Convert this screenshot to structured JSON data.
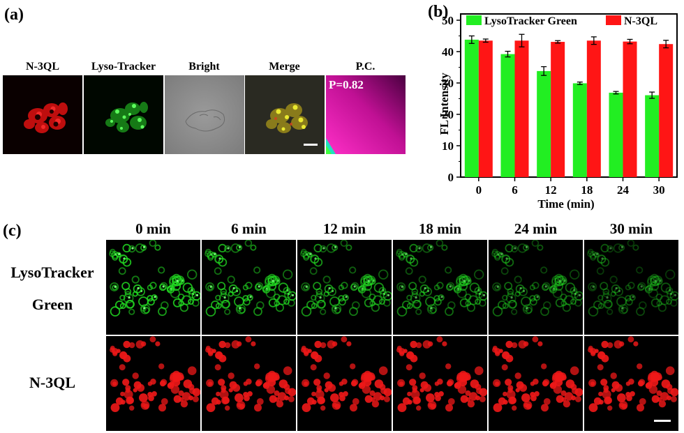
{
  "panel_a": {
    "label": "(a)",
    "columns": [
      {
        "name": "n3ql",
        "header": "N-3QL",
        "color": "#e01010"
      },
      {
        "name": "lysotracker",
        "header": "Lyso-Tracker",
        "color": "#20d020"
      },
      {
        "name": "bright",
        "header": "Bright"
      },
      {
        "name": "merge",
        "header": "Merge"
      },
      {
        "name": "pc",
        "header": "P.C."
      }
    ],
    "pc_value": "P=0.82"
  },
  "panel_b": {
    "label": "(b)",
    "chart_data": {
      "type": "bar",
      "categories": [
        "0",
        "6",
        "12",
        "18",
        "24",
        "30"
      ],
      "series": [
        {
          "name": "LysoTracker Green",
          "color": "#22ee22",
          "values": [
            43.8,
            39.2,
            33.8,
            29.9,
            26.9,
            26.1
          ],
          "errors": [
            1.2,
            0.9,
            1.4,
            0.4,
            0.4,
            1.0
          ]
        },
        {
          "name": "N-3QL",
          "color": "#ff1515",
          "values": [
            43.5,
            43.5,
            43.1,
            43.5,
            43.2,
            42.4
          ],
          "errors": [
            0.5,
            2.0,
            0.4,
            1.2,
            0.7,
            1.2
          ]
        }
      ],
      "xlabel": "Time (min)",
      "ylabel": "FL Intensity",
      "ylim": [
        0,
        52
      ],
      "yticks": [
        "0",
        "10",
        "20",
        "30",
        "40",
        "50"
      ],
      "legend_placement": "top"
    }
  },
  "panel_c": {
    "label": "(c)",
    "times": [
      "0 min",
      "6 min",
      "12 min",
      "18 min",
      "24 min",
      "30 min"
    ],
    "rows": [
      {
        "name": "lysotracker-green",
        "label_line1": "LysoTracker",
        "label_line2": "Green",
        "color": "#22dd22"
      },
      {
        "name": "n3ql",
        "label_line1": "N-3QL",
        "color": "#ee1818"
      }
    ]
  }
}
